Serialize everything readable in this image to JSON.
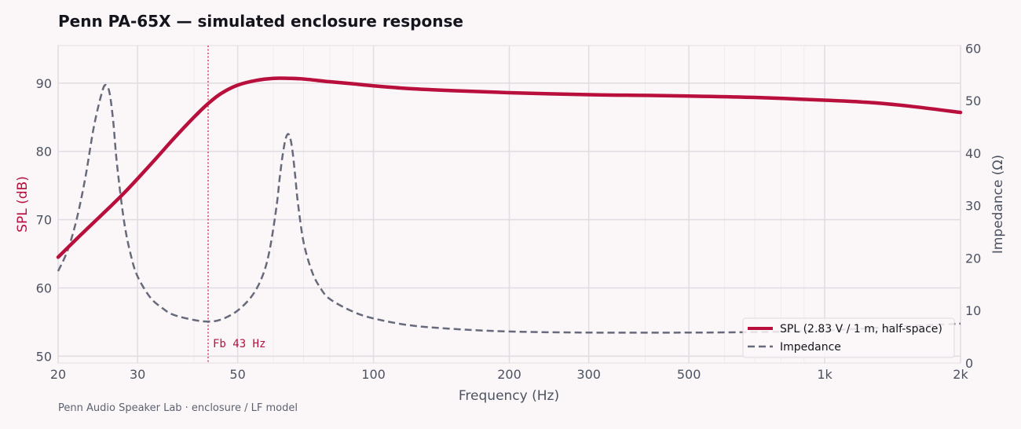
{
  "title": "Penn PA-65X — simulated enclosure response",
  "footer": "Penn Audio Speaker Lab · enclosure / LF model",
  "colors": {
    "spl": "#b90f3c",
    "impedance": "#676a7a",
    "grid": "#e2dde3",
    "background": "#fbf7f9",
    "fb_line": "#c8284e"
  },
  "chart_data": {
    "type": "line",
    "title": "Penn PA-65X — simulated enclosure response",
    "xlabel": "Frequency  (Hz)",
    "ylabel": "SPL  (dB)",
    "y2label": "Impedance  (Ω)",
    "xscale": "log",
    "xlim": [
      20,
      2000
    ],
    "ylim": [
      49,
      95.5
    ],
    "y2lim": [
      0,
      60.5
    ],
    "x_ticks": [
      20,
      30,
      50,
      100,
      200,
      300,
      500,
      1000,
      2000
    ],
    "x_tick_labels": [
      "20",
      "30",
      "50",
      "100",
      "200",
      "300",
      "500",
      "1k",
      "2k"
    ],
    "x_minor_ticks": [
      40,
      60,
      70,
      80,
      90,
      400,
      600,
      700,
      800,
      900
    ],
    "y_ticks": [
      50,
      60,
      70,
      80,
      90
    ],
    "y2_ticks": [
      0,
      10,
      20,
      30,
      40,
      50,
      60
    ],
    "grid": true,
    "legend_position": "bottom-right",
    "annotation": {
      "x": 43,
      "label": "Fb 43 Hz"
    },
    "series": [
      {
        "name": "SPL  (2.83 V / 1 m, half-space)",
        "axis": "left",
        "style": "solid",
        "x": [
          20,
          22,
          24,
          26,
          28,
          30,
          33,
          36,
          40,
          43,
          46,
          50,
          55,
          60,
          65,
          70,
          80,
          90,
          100,
          120,
          150,
          200,
          300,
          400,
          500,
          700,
          1000,
          1300,
          1600,
          2000
        ],
        "y": [
          64.5,
          67.2,
          69.6,
          71.8,
          73.9,
          76.0,
          79.0,
          81.8,
          85.0,
          87.0,
          88.5,
          89.7,
          90.4,
          90.7,
          90.7,
          90.6,
          90.2,
          89.9,
          89.6,
          89.2,
          88.9,
          88.6,
          88.3,
          88.2,
          88.1,
          87.9,
          87.5,
          87.1,
          86.5,
          85.7
        ]
      },
      {
        "name": "Impedance",
        "axis": "right",
        "style": "dashed",
        "x": [
          20,
          21,
          22,
          23,
          24,
          25,
          25.5,
          26,
          26.5,
          27,
          28,
          29,
          30,
          32,
          34,
          36,
          40,
          43,
          46,
          50,
          54,
          57,
          59,
          61,
          62,
          63,
          64,
          65,
          66,
          67,
          68,
          70,
          73,
          76,
          80,
          90,
          100,
          120,
          150,
          200,
          300,
          500,
          700,
          1000,
          1500,
          2000
        ],
        "y": [
          17.5,
          21.5,
          27.5,
          35.5,
          45.0,
          51.5,
          53.0,
          51.5,
          46.0,
          38.0,
          27.0,
          20.5,
          16.5,
          12.5,
          10.5,
          9.2,
          8.2,
          7.9,
          8.3,
          10.0,
          13.0,
          17.0,
          22.0,
          30.0,
          35.5,
          40.0,
          43.0,
          43.5,
          41.0,
          36.0,
          30.5,
          23.0,
          17.5,
          14.5,
          12.2,
          9.8,
          8.5,
          7.2,
          6.5,
          6.0,
          5.8,
          5.8,
          5.9,
          6.2,
          7.0,
          7.5
        ]
      }
    ]
  }
}
